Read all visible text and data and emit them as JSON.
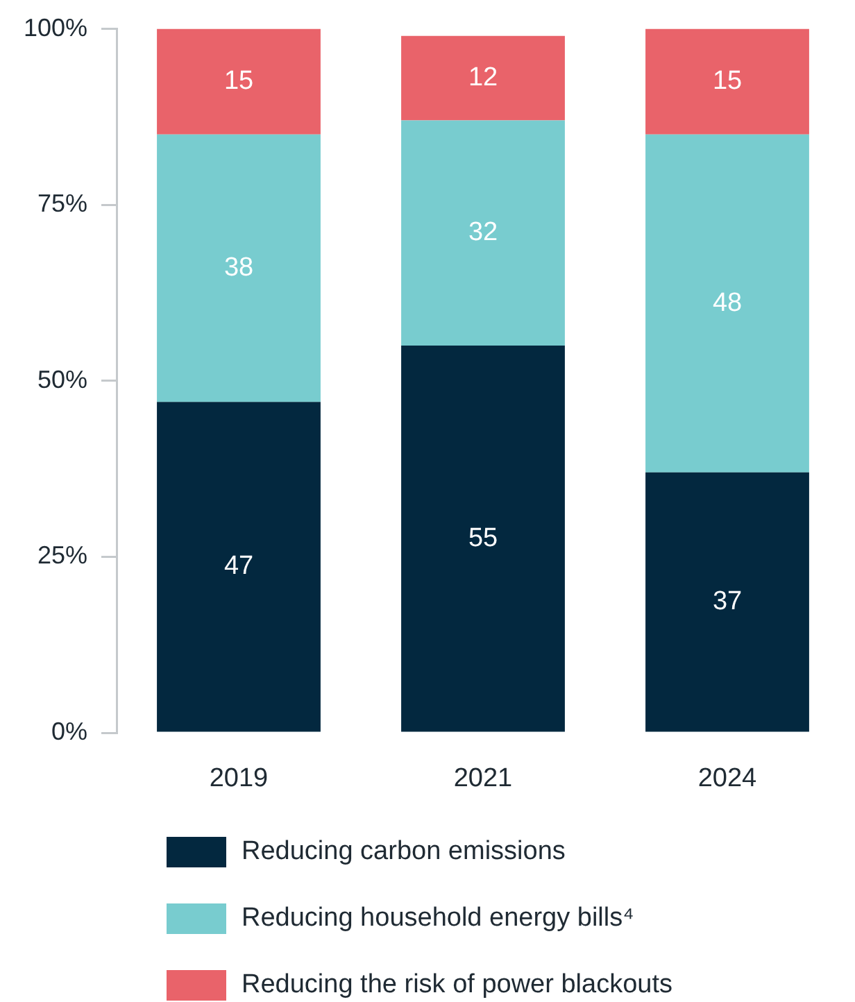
{
  "chart_data": {
    "type": "bar",
    "stacked": true,
    "categories": [
      "2019",
      "2021",
      "2024"
    ],
    "series": [
      {
        "name": "Reducing carbon emissions",
        "color": "#03283f",
        "values": [
          47,
          55,
          37
        ]
      },
      {
        "name": "Reducing household energy bills⁴",
        "color": "#78cccf",
        "values": [
          38,
          32,
          48
        ]
      },
      {
        "name": "Reducing the risk of power blackouts",
        "color": "#e9636a",
        "values": [
          15,
          12,
          15
        ]
      }
    ],
    "ylim": [
      0,
      100
    ],
    "yticks": [
      {
        "value": 0,
        "label": "0%"
      },
      {
        "value": 25,
        "label": "25%"
      },
      {
        "value": 50,
        "label": "50%"
      },
      {
        "value": 75,
        "label": "75%"
      },
      {
        "value": 100,
        "label": "100%"
      }
    ],
    "data_labels": true,
    "legend": "bottom"
  }
}
